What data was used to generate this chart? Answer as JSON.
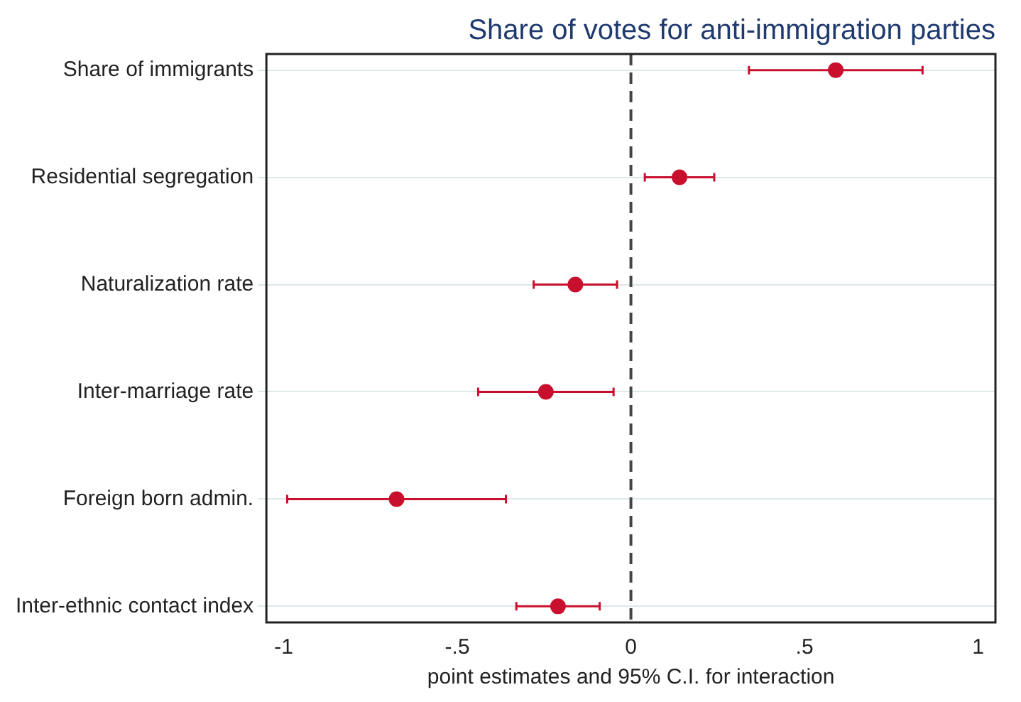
{
  "chart_data": {
    "type": "scatter",
    "orientation": "horizontal",
    "title": "Share of votes for anti-immigration parties",
    "xlabel": "point estimates and 95% C.I. for interaction",
    "categories": [
      "Share of immigrants",
      "Residential segregation",
      "Naturalization rate",
      "Inter-marriage rate",
      "Foreign born admin.",
      "Inter-ethnic contact index"
    ],
    "series": [
      {
        "color": "#c8102e",
        "values": [
          0.59,
          0.14,
          -0.16,
          -0.245,
          -0.675,
          -0.21
        ],
        "errors": [
          [
            0.34,
            0.84
          ],
          [
            0.04,
            0.24
          ],
          [
            -0.28,
            -0.04
          ],
          [
            -0.44,
            -0.05
          ],
          [
            -0.99,
            -0.36
          ],
          [
            -0.33,
            -0.09
          ]
        ]
      }
    ],
    "xlim": [
      -1.05,
      1.05
    ],
    "xticks": [
      {
        "value": -1,
        "label": "-1"
      },
      {
        "value": -0.5,
        "label": "-.5"
      },
      {
        "value": 0,
        "label": "0"
      },
      {
        "value": 0.5,
        "label": ".5"
      },
      {
        "value": 1,
        "label": "1"
      }
    ],
    "ref_lines": [
      {
        "axis": "x",
        "value": 0,
        "color": "#444444",
        "line_style": "dashed"
      }
    ],
    "grid": "y",
    "marker": "circle",
    "legend": false
  }
}
